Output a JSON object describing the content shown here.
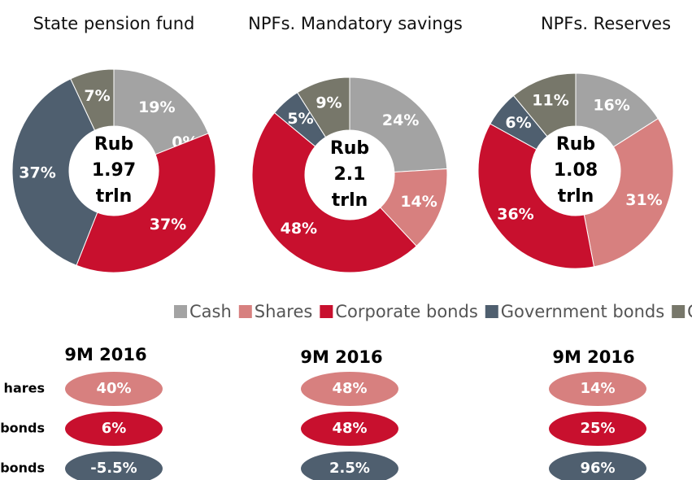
{
  "legend": {
    "categories": [
      "Cash",
      "Shares",
      "Corporate bonds",
      "Government bonds",
      "Other"
    ],
    "colors": [
      "#a3a3a3",
      "#d7807f",
      "#c8102e",
      "#4f5f6f",
      "#77776a"
    ]
  },
  "chart_data": [
    {
      "type": "pie",
      "title": "State pension fund",
      "values": [
        19,
        0,
        37,
        37,
        7
      ],
      "value_labels": [
        "19%",
        "0%",
        "37%",
        "37%",
        "7%"
      ],
      "center_label": [
        "Rub",
        "1.97",
        "trln"
      ]
    },
    {
      "type": "pie",
      "title": "NPFs. Mandatory savings",
      "values": [
        24,
        14,
        48,
        5,
        9
      ],
      "value_labels": [
        "24%",
        "14%",
        "48%",
        "5%",
        "9%"
      ],
      "center_label": [
        "Rub",
        "2.1",
        "trln"
      ]
    },
    {
      "type": "pie",
      "title": "NPFs. Reserves",
      "values": [
        16,
        31,
        36,
        6,
        11
      ],
      "value_labels": [
        "16%",
        "31%",
        "36%",
        "6%",
        "11%"
      ],
      "center_label": [
        "Rub",
        "1.08",
        "trln"
      ]
    }
  ],
  "growth": {
    "row_labels": [
      "hares",
      "bonds",
      "bonds"
    ],
    "columns": [
      {
        "header": "9M 2016",
        "values": [
          "40%",
          "6%",
          "-5.5%"
        ]
      },
      {
        "header": "9M 2016",
        "values": [
          "48%",
          "48%",
          "2.5%"
        ]
      },
      {
        "header": "9M 2016",
        "values": [
          "14%",
          "25%",
          "96%"
        ]
      }
    ]
  }
}
